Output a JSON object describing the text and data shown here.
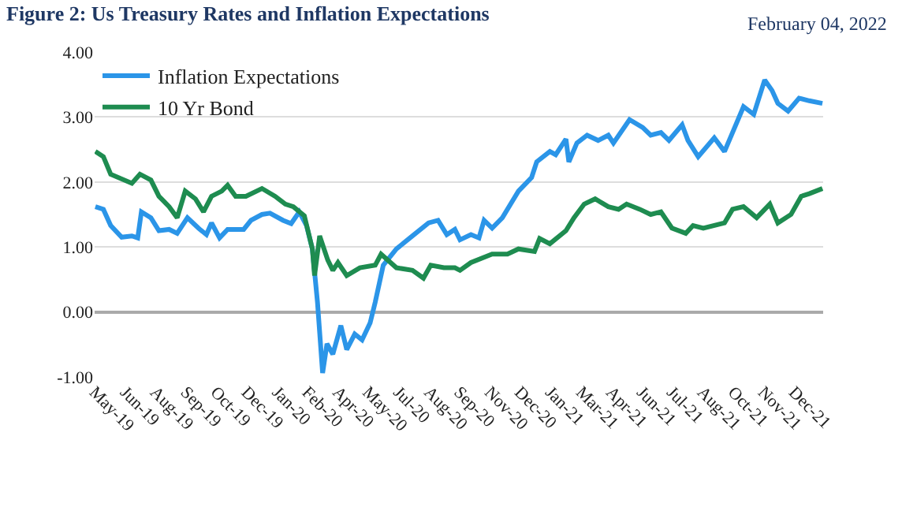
{
  "chart_data": {
    "type": "line",
    "title": "Figure 2: Us Treasury Rates and Inflation Expectations",
    "annotations": [
      "February 04, 2022"
    ],
    "xlim": [
      "2019-05-14",
      "2022-02-04"
    ],
    "xticks": [
      {
        "value": "2019-05-14",
        "label": "May-19"
      },
      {
        "value": "2019-06-25",
        "label": "Jun-19"
      },
      {
        "value": "2019-08-05",
        "label": "Aug-19"
      },
      {
        "value": "2019-09-16",
        "label": "Sep-19"
      },
      {
        "value": "2019-10-27",
        "label": "Oct-19"
      },
      {
        "value": "2019-12-08",
        "label": "Dec-19"
      },
      {
        "value": "2020-01-19",
        "label": "Jan-20"
      },
      {
        "value": "2020-02-29",
        "label": "Feb-20"
      },
      {
        "value": "2020-04-11",
        "label": "Apr-20"
      },
      {
        "value": "2020-05-22",
        "label": "May-20"
      },
      {
        "value": "2020-07-03",
        "label": "Jul-20"
      },
      {
        "value": "2020-08-14",
        "label": "Aug-20"
      },
      {
        "value": "2020-09-24",
        "label": "Sep-20"
      },
      {
        "value": "2020-11-05",
        "label": "Nov-20"
      },
      {
        "value": "2020-12-16",
        "label": "Dec-20"
      },
      {
        "value": "2021-01-27",
        "label": "Jan-21"
      },
      {
        "value": "2021-03-10",
        "label": "Mar-21"
      },
      {
        "value": "2021-04-20",
        "label": "Apr-21"
      },
      {
        "value": "2021-06-01",
        "label": "Jun-21"
      },
      {
        "value": "2021-07-12",
        "label": "Jul-21"
      },
      {
        "value": "2021-08-23",
        "label": "Aug-21"
      },
      {
        "value": "2021-10-04",
        "label": "Oct-21"
      },
      {
        "value": "2021-11-14",
        "label": "Nov-21"
      },
      {
        "value": "2021-12-26",
        "label": "Dec-21"
      }
    ],
    "ylim": [
      -1,
      4
    ],
    "yticks": [
      {
        "value": -1,
        "label": "-1.00"
      },
      {
        "value": 0,
        "label": "0.00"
      },
      {
        "value": 1,
        "label": "1.00"
      },
      {
        "value": 2,
        "label": "2.00"
      },
      {
        "value": 3,
        "label": "3.00"
      },
      {
        "value": 4,
        "label": "4.00"
      }
    ],
    "grid": "y",
    "legend": "top left",
    "marker": "none",
    "line_style": "solid",
    "series": [
      {
        "name": "Inflation Expectations",
        "color": "#2b95e8",
        "x": [
          "2019-05-15",
          "2019-05-26",
          "2019-06-05",
          "2019-06-20",
          "2019-07-04",
          "2019-07-12",
          "2019-07-17",
          "2019-07-30",
          "2019-08-10",
          "2019-08-24",
          "2019-09-04",
          "2019-09-18",
          "2019-10-03",
          "2019-10-14",
          "2019-10-21",
          "2019-11-01",
          "2019-11-12",
          "2019-12-04",
          "2019-12-14",
          "2019-12-29",
          "2020-01-09",
          "2020-01-27",
          "2020-02-07",
          "2020-02-18",
          "2020-02-28",
          "2020-03-07",
          "2020-03-14",
          "2020-03-21",
          "2020-03-27",
          "2020-04-04",
          "2020-04-15",
          "2020-04-23",
          "2020-05-04",
          "2020-05-14",
          "2020-05-25",
          "2020-06-01",
          "2020-06-12",
          "2020-06-30",
          "2020-07-22",
          "2020-08-13",
          "2020-08-26",
          "2020-09-07",
          "2020-09-18",
          "2020-09-25",
          "2020-10-10",
          "2020-10-21",
          "2020-10-28",
          "2020-11-08",
          "2020-11-22",
          "2020-12-14",
          "2021-01-01",
          "2021-01-08",
          "2021-01-26",
          "2021-02-03",
          "2021-02-17",
          "2021-02-21",
          "2021-03-04",
          "2021-03-18",
          "2021-04-02",
          "2021-04-16",
          "2021-04-23",
          "2021-05-15",
          "2021-06-02",
          "2021-06-13",
          "2021-06-27",
          "2021-07-08",
          "2021-07-26",
          "2021-08-03",
          "2021-08-17",
          "2021-09-08",
          "2021-09-22",
          "2021-10-03",
          "2021-10-18",
          "2021-11-01",
          "2021-11-16",
          "2021-11-26",
          "2021-12-04",
          "2021-12-18",
          "2022-01-02",
          "2022-01-16",
          "2022-02-03"
        ],
        "values": [
          1.62,
          1.58,
          1.33,
          1.15,
          1.17,
          1.14,
          1.54,
          1.45,
          1.25,
          1.27,
          1.21,
          1.45,
          1.29,
          1.19,
          1.37,
          1.14,
          1.27,
          1.27,
          1.41,
          1.5,
          1.52,
          1.41,
          1.36,
          1.54,
          1.33,
          0.97,
          0.15,
          -0.94,
          -0.49,
          -0.65,
          -0.21,
          -0.58,
          -0.34,
          -0.43,
          -0.17,
          0.15,
          0.72,
          0.97,
          1.17,
          1.37,
          1.41,
          1.19,
          1.27,
          1.11,
          1.19,
          1.14,
          1.41,
          1.29,
          1.45,
          1.86,
          2.07,
          2.31,
          2.47,
          2.42,
          2.66,
          2.31,
          2.6,
          2.72,
          2.64,
          2.72,
          2.6,
          2.96,
          2.84,
          2.72,
          2.76,
          2.64,
          2.88,
          2.64,
          2.39,
          2.68,
          2.47,
          2.76,
          3.16,
          3.04,
          3.57,
          3.41,
          3.21,
          3.09,
          3.29,
          3.25,
          3.21
        ]
      },
      {
        "name": "10 Yr Bond",
        "color": "#1e8c50",
        "x": [
          "2019-05-15",
          "2019-05-26",
          "2019-06-05",
          "2019-07-04",
          "2019-07-15",
          "2019-07-30",
          "2019-08-10",
          "2019-08-24",
          "2019-09-04",
          "2019-09-15",
          "2019-09-29",
          "2019-10-10",
          "2019-10-21",
          "2019-11-04",
          "2019-11-12",
          "2019-11-23",
          "2019-12-07",
          "2019-12-29",
          "2020-01-16",
          "2020-01-30",
          "2020-02-10",
          "2020-02-25",
          "2020-03-07",
          "2020-03-10",
          "2020-03-17",
          "2020-03-28",
          "2020-04-04",
          "2020-04-11",
          "2020-04-23",
          "2020-05-11",
          "2020-06-01",
          "2020-06-09",
          "2020-06-30",
          "2020-07-22",
          "2020-08-06",
          "2020-08-16",
          "2020-09-03",
          "2020-09-18",
          "2020-09-25",
          "2020-10-10",
          "2020-11-08",
          "2020-11-29",
          "2020-12-14",
          "2021-01-05",
          "2021-01-12",
          "2021-01-26",
          "2021-02-17",
          "2021-02-28",
          "2021-03-14",
          "2021-03-29",
          "2021-04-16",
          "2021-04-30",
          "2021-05-11",
          "2021-05-29",
          "2021-06-13",
          "2021-06-27",
          "2021-07-12",
          "2021-07-31",
          "2021-08-10",
          "2021-08-24",
          "2021-09-22",
          "2021-10-03",
          "2021-10-18",
          "2021-11-05",
          "2021-11-23",
          "2021-12-04",
          "2021-12-22",
          "2022-01-05",
          "2022-01-16",
          "2022-02-03"
        ],
        "values": [
          2.47,
          2.39,
          2.12,
          1.98,
          2.12,
          2.03,
          1.78,
          1.62,
          1.45,
          1.86,
          1.74,
          1.54,
          1.78,
          1.86,
          1.95,
          1.78,
          1.78,
          1.9,
          1.78,
          1.66,
          1.62,
          1.48,
          0.97,
          0.56,
          1.17,
          0.8,
          0.64,
          0.76,
          0.56,
          0.68,
          0.72,
          0.89,
          0.68,
          0.64,
          0.52,
          0.72,
          0.68,
          0.68,
          0.64,
          0.76,
          0.89,
          0.89,
          0.97,
          0.93,
          1.13,
          1.05,
          1.25,
          1.45,
          1.66,
          1.74,
          1.62,
          1.58,
          1.66,
          1.58,
          1.5,
          1.54,
          1.29,
          1.21,
          1.33,
          1.29,
          1.37,
          1.58,
          1.62,
          1.45,
          1.66,
          1.37,
          1.5,
          1.78,
          1.82,
          1.9
        ]
      }
    ]
  }
}
